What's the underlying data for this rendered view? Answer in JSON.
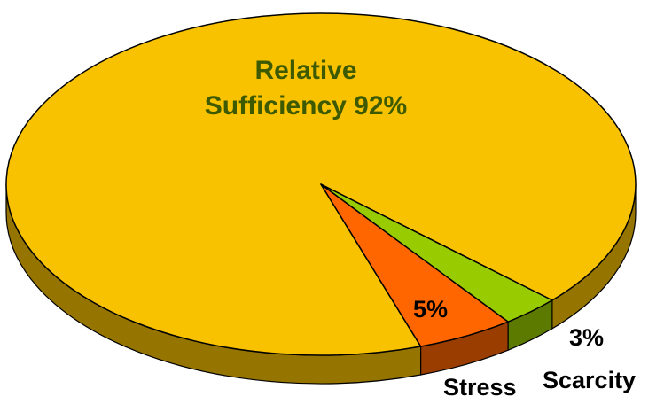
{
  "chart_data": {
    "type": "pie",
    "categories": [
      "Relative Sufficiency",
      "Stress",
      "Scarcity"
    ],
    "values": [
      92,
      5,
      3
    ],
    "value_labels": [
      "92%",
      "5%",
      "3%"
    ],
    "colors": [
      "#f8c200",
      "#ff6600",
      "#99cc00"
    ]
  }
}
